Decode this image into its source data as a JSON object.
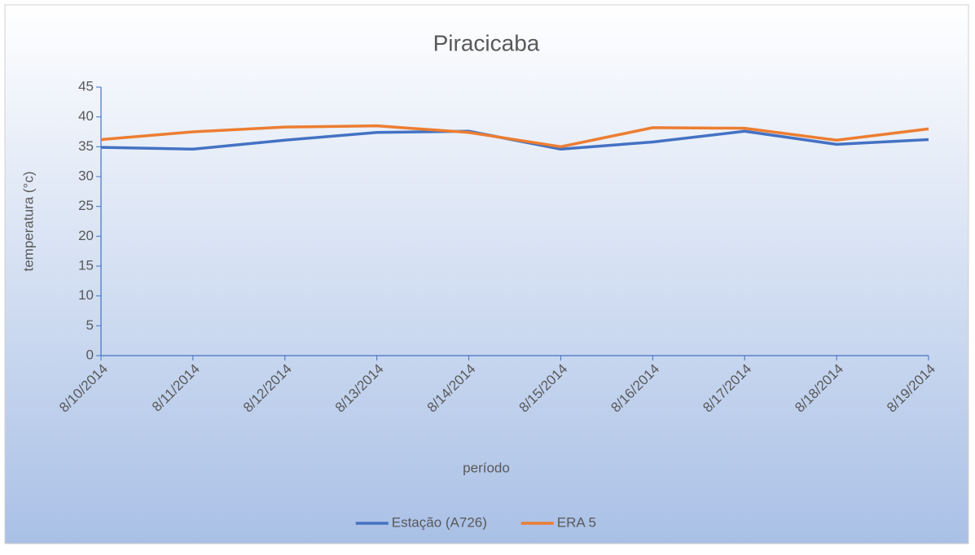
{
  "chart_data": {
    "type": "line",
    "title": "Piracicaba",
    "xlabel": "período",
    "ylabel": "temperatura (°c)",
    "x": [
      "8/10/2014",
      "8/11/2014",
      "8/12/2014",
      "8/13/2014",
      "8/14/2014",
      "8/15/2014",
      "8/16/2014",
      "8/17/2014",
      "8/18/2014",
      "8/19/2014"
    ],
    "series": [
      {
        "name": "Estação (A726)",
        "color": "#4472c4",
        "values": [
          34.9,
          34.6,
          36.1,
          37.4,
          37.6,
          34.6,
          35.8,
          37.6,
          35.4,
          36.2
        ]
      },
      {
        "name": "ERA 5",
        "color": "#ed7d31",
        "values": [
          36.2,
          37.5,
          38.3,
          38.5,
          37.4,
          35.0,
          38.2,
          38.1,
          36.1,
          38.0
        ]
      }
    ],
    "ylim": [
      0,
      45
    ],
    "yticks": [
      0,
      5,
      10,
      15,
      20,
      25,
      30,
      35,
      40,
      45
    ],
    "legend": "bottom"
  }
}
